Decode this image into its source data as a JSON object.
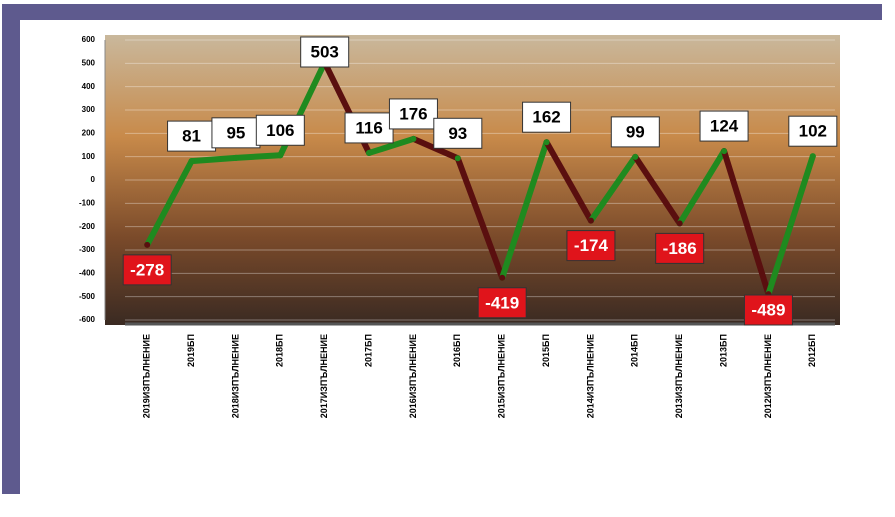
{
  "chart_data": {
    "type": "line",
    "categories": [
      "2019ИЗПЪЛНЕНИЕ",
      "2019БП",
      "2018ИЗПЪЛНЕНИЕ",
      "2018БП",
      "2017ИЗПЪЛНЕНИЕ",
      "2017БП",
      "2016ИЗПЪЛНЕНИЕ",
      "2016БП",
      "2015ИЗПЪЛНЕНИЕ",
      "2015БП",
      "2014ИЗПЪЛНЕНИЕ",
      "2014БП",
      "2013ИЗПЪЛНЕНИЕ",
      "2013БП",
      "2012ИЗПЪЛНЕНИЕ",
      "2012БП"
    ],
    "values": [
      -278,
      81,
      95,
      106,
      503,
      116,
      176,
      93,
      -419,
      162,
      -174,
      99,
      -186,
      124,
      -489,
      102
    ],
    "up_color": "#1f8a1f",
    "down_color": "#5a0f0f",
    "positive_label_color": "#ffffff",
    "negative_label_color": "#e0141b",
    "ylim": [
      -600,
      600
    ],
    "yticks": [
      -600,
      -500,
      -400,
      -300,
      -200,
      -100,
      0,
      100,
      200,
      300,
      400,
      500,
      600
    ]
  }
}
